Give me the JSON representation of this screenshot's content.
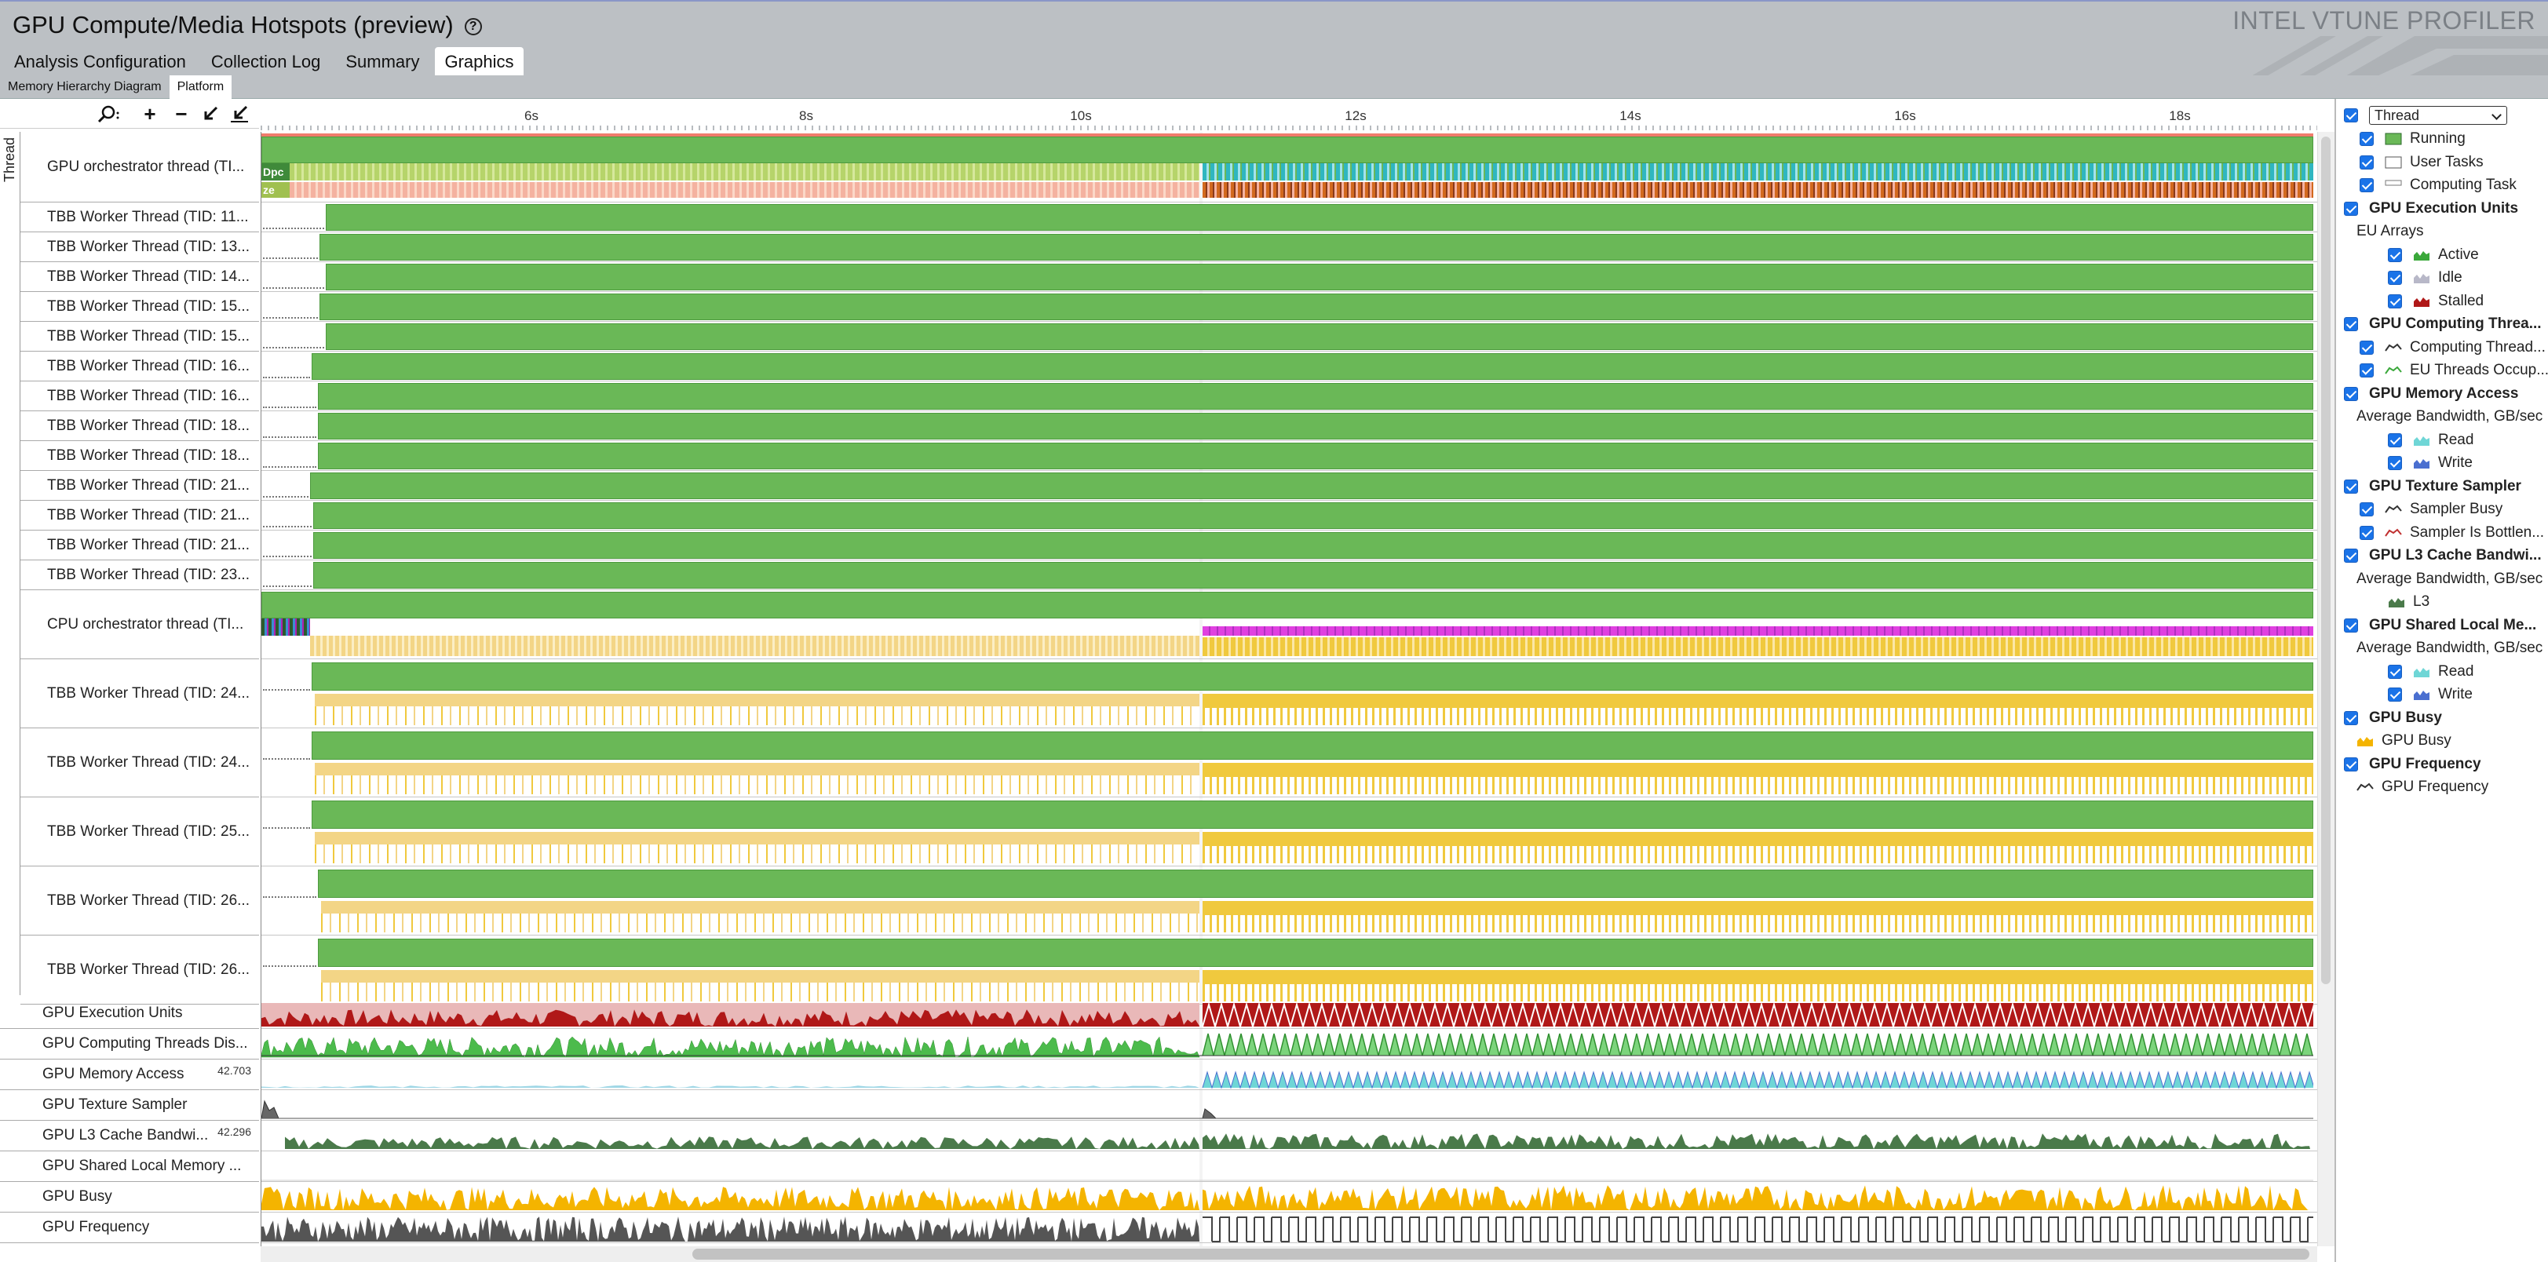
{
  "header": {
    "title": "GPU Compute/Media Hotspots (preview)",
    "brand": "INTEL VTUNE PROFILER",
    "tabs": [
      {
        "label": "Analysis Configuration"
      },
      {
        "label": "Collection Log"
      },
      {
        "label": "Summary"
      },
      {
        "label": "Graphics",
        "active": true
      }
    ]
  },
  "sub_tabs": [
    {
      "label": "Memory Hierarchy Diagram"
    },
    {
      "label": "Platform",
      "active": true
    }
  ],
  "toolbar": {
    "icons": [
      "zoom-icon",
      "zoom-in-icon",
      "zoom-out-icon",
      "zoom-to-selection-icon",
      "reset-zoom-icon"
    ]
  },
  "ruler": {
    "ticks": [
      "6s",
      "8s",
      "10s",
      "12s",
      "14s",
      "16s",
      "18s"
    ]
  },
  "timeline": {
    "group_label": "Thread",
    "threads": [
      {
        "label": "GPU orchestrator thread (TI...",
        "mini_labels": [
          "Dpc",
          "ze"
        ]
      },
      {
        "label": "TBB Worker Thread (TID: 11..."
      },
      {
        "label": "TBB Worker Thread (TID: 13..."
      },
      {
        "label": "TBB Worker Thread (TID: 14..."
      },
      {
        "label": "TBB Worker Thread (TID: 15..."
      },
      {
        "label": "TBB Worker Thread (TID: 15..."
      },
      {
        "label": "TBB Worker Thread (TID: 16..."
      },
      {
        "label": "TBB Worker Thread (TID: 16..."
      },
      {
        "label": "TBB Worker Thread (TID: 18..."
      },
      {
        "label": "TBB Worker Thread (TID: 18..."
      },
      {
        "label": "TBB Worker Thread (TID: 21..."
      },
      {
        "label": "TBB Worker Thread (TID: 21..."
      },
      {
        "label": "TBB Worker Thread (TID: 21..."
      },
      {
        "label": "TBB Worker Thread (TID: 23..."
      },
      {
        "label": "CPU orchestrator thread (TI..."
      },
      {
        "label": "TBB Worker Thread (TID: 24..."
      },
      {
        "label": "TBB Worker Thread (TID: 24..."
      },
      {
        "label": "TBB Worker Thread (TID: 25..."
      },
      {
        "label": "TBB Worker Thread (TID: 26..."
      },
      {
        "label": "TBB Worker Thread (TID: 26..."
      }
    ],
    "gpu_tracks": [
      {
        "label": "GPU Execution Units"
      },
      {
        "label": "GPU Computing Threads Dis..."
      },
      {
        "label": "GPU Memory Access",
        "max": "42.703"
      },
      {
        "label": "GPU Texture Sampler"
      },
      {
        "label": "GPU L3 Cache Bandwi...",
        "max": "42.296"
      },
      {
        "label": "GPU Shared Local Memory ..."
      },
      {
        "label": "GPU Busy"
      },
      {
        "label": "GPU Frequency"
      }
    ]
  },
  "legend": {
    "thread_select": "Thread",
    "items": [
      {
        "text": "Running",
        "indent": 1,
        "checkbox": true,
        "swatch": "running"
      },
      {
        "text": "User Tasks",
        "indent": 1,
        "checkbox": true,
        "swatch": "user"
      },
      {
        "text": "Computing Task",
        "indent": 1,
        "checkbox": true,
        "swatch": "task"
      },
      {
        "text": "GPU Execution Units",
        "indent": 0,
        "checkbox": true,
        "bold": true
      },
      {
        "text": "EU Arrays",
        "indent": 1,
        "checkbox": false
      },
      {
        "text": "Active",
        "indent": 2,
        "checkbox": true,
        "swatch": "active"
      },
      {
        "text": "Idle",
        "indent": 2,
        "checkbox": true,
        "swatch": "idle"
      },
      {
        "text": "Stalled",
        "indent": 2,
        "checkbox": true,
        "swatch": "stalled"
      },
      {
        "text": "GPU Computing Threa...",
        "indent": 0,
        "checkbox": true,
        "bold": true
      },
      {
        "text": "Computing Thread...",
        "indent": 1,
        "checkbox": true,
        "swatch": "line-dark"
      },
      {
        "text": "EU Threads Occup...",
        "indent": 1,
        "checkbox": true,
        "swatch": "line-green"
      },
      {
        "text": "GPU Memory Access",
        "indent": 0,
        "checkbox": true,
        "bold": true
      },
      {
        "text": "Average Bandwidth, GB/sec",
        "indent": 1,
        "checkbox": false
      },
      {
        "text": "Read",
        "indent": 2,
        "checkbox": true,
        "swatch": "read"
      },
      {
        "text": "Write",
        "indent": 2,
        "checkbox": true,
        "swatch": "write"
      },
      {
        "text": "GPU Texture Sampler",
        "indent": 0,
        "checkbox": true,
        "bold": true
      },
      {
        "text": "Sampler Busy",
        "indent": 1,
        "checkbox": true,
        "swatch": "line-dark"
      },
      {
        "text": "Sampler Is Bottlen...",
        "indent": 1,
        "checkbox": true,
        "swatch": "line-red"
      },
      {
        "text": "GPU L3 Cache Bandwi...",
        "indent": 0,
        "checkbox": true,
        "bold": true
      },
      {
        "text": "Average Bandwidth, GB/sec",
        "indent": 1,
        "checkbox": false
      },
      {
        "text": "L3",
        "indent": 2,
        "checkbox": false,
        "swatch": "l3"
      },
      {
        "text": "GPU Shared Local Me...",
        "indent": 0,
        "checkbox": true,
        "bold": true
      },
      {
        "text": "Average Bandwidth, GB/sec",
        "indent": 1,
        "checkbox": false
      },
      {
        "text": "Read",
        "indent": 2,
        "checkbox": true,
        "swatch": "read"
      },
      {
        "text": "Write",
        "indent": 2,
        "checkbox": true,
        "swatch": "write"
      },
      {
        "text": "GPU Busy",
        "indent": 0,
        "checkbox": true,
        "bold": true
      },
      {
        "text": "GPU Busy",
        "indent": 1,
        "checkbox": false,
        "swatch": "busy"
      },
      {
        "text": "GPU Frequency",
        "indent": 0,
        "checkbox": true,
        "bold": true
      },
      {
        "text": "GPU Frequency",
        "indent": 1,
        "checkbox": false,
        "swatch": "line-dark"
      }
    ]
  },
  "colors": {
    "running": "#6ab857",
    "cpu_time": "#f0c93e",
    "stalled": "#b01818",
    "eu_threads": "#4cbb4c",
    "read": "#6fd6d6",
    "write": "#4a6fd0",
    "l3": "#4a7a4a",
    "busy": "#f4b400",
    "magenta": "#e040e0"
  }
}
